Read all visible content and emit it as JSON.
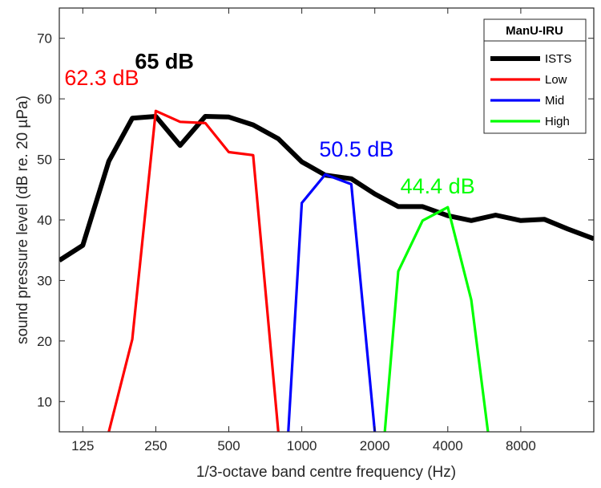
{
  "chart_data": {
    "type": "line",
    "title": "",
    "xlabel": "1/3-octave band centre frequency (Hz)",
    "ylabel": "sound pressure level (dB re. 20 µPa)",
    "xscale": "log",
    "xlim": [
      100,
      16000
    ],
    "ylim": [
      5,
      75
    ],
    "xticks": [
      125,
      250,
      500,
      1000,
      2000,
      4000,
      8000
    ],
    "xtick_labels": [
      "125",
      "250",
      "500",
      "1000",
      "2000",
      "4000",
      "8000"
    ],
    "yticks": [
      10,
      20,
      30,
      40,
      50,
      60,
      70
    ],
    "ytick_labels": [
      "10",
      "20",
      "30",
      "40",
      "50",
      "60",
      "70"
    ],
    "grid": false,
    "legend": {
      "title": "ManU-IRU",
      "position": "top-right",
      "entries": [
        "ISTS",
        "Low",
        "Mid",
        "High"
      ]
    },
    "series": [
      {
        "name": "ISTS",
        "color": "#000000",
        "width": "thick",
        "x": [
          100,
          125,
          160,
          200,
          250,
          315,
          400,
          500,
          630,
          800,
          1000,
          1250,
          1600,
          2000,
          2500,
          3150,
          4000,
          5000,
          6300,
          8000,
          10000,
          12500,
          16000
        ],
        "y": [
          33.3,
          35.8,
          49.7,
          56.8,
          57.1,
          52.3,
          57.1,
          57.0,
          55.7,
          53.4,
          49.6,
          47.4,
          46.8,
          44.3,
          42.2,
          42.2,
          40.7,
          39.9,
          40.8,
          39.9,
          40.1,
          38.5,
          36.9
        ]
      },
      {
        "name": "Low",
        "color": "#ff0000",
        "x": [
          125,
          160,
          200,
          250,
          315,
          400,
          500,
          630,
          800,
          850
        ],
        "y": [
          -5,
          5.0,
          20.3,
          58.0,
          56.2,
          56.0,
          51.2,
          50.7,
          5.0,
          -5
        ]
      },
      {
        "name": "Mid",
        "color": "#0000ff",
        "x": [
          850,
          1000,
          1250,
          1600,
          2000,
          2100
        ],
        "y": [
          -5,
          42.8,
          47.5,
          45.9,
          5.0,
          -5
        ]
      },
      {
        "name": "High",
        "color": "#00ff00",
        "x": [
          2200,
          2500,
          3150,
          4000,
          5000,
          6300
        ],
        "y": [
          5.0,
          31.5,
          39.9,
          42.1,
          26.8,
          -5
        ]
      }
    ],
    "annotations": [
      {
        "text": "62.3 dB",
        "color": "#ff0000",
        "x": 105,
        "y": 62.3,
        "bold": false
      },
      {
        "text": "65 dB",
        "color": "#000000",
        "x": 205,
        "y": 65.0,
        "bold": true
      },
      {
        "text": "50.5 dB",
        "color": "#0000ff",
        "x": 1180,
        "y": 50.5,
        "bold": false
      },
      {
        "text": "44.4 dB",
        "color": "#00ff00",
        "x": 2550,
        "y": 44.4,
        "bold": false
      }
    ]
  }
}
